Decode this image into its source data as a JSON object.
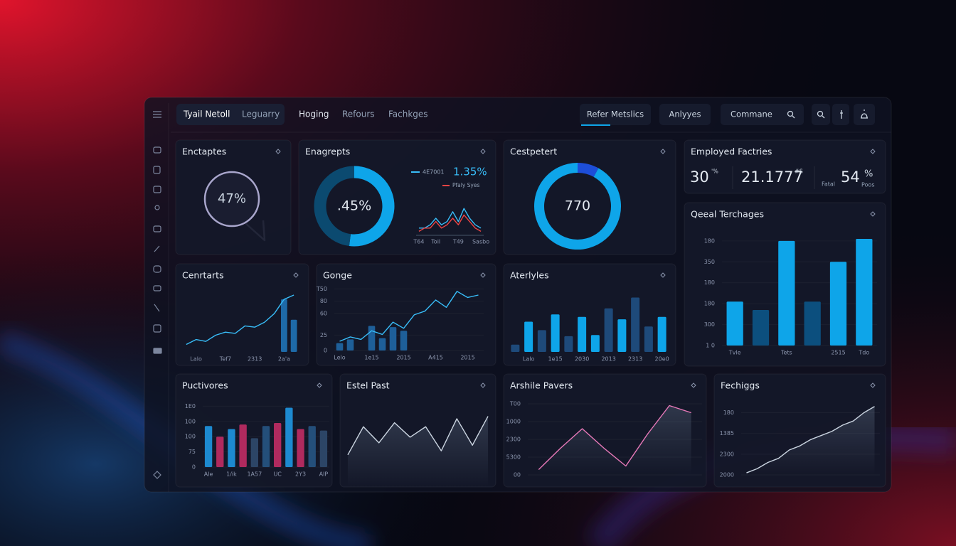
{
  "nav": {
    "brand": "Tyail Netoll",
    "sub": "Leguarry",
    "links": [
      "Hoging",
      "Refours",
      "Fachkges"
    ],
    "tabs": [
      "Refer Metslics",
      "Anlyyes"
    ],
    "search": "Commane"
  },
  "panels": [
    {
      "title": "Enctaptes",
      "type": "bubble",
      "center_label": "47%"
    },
    {
      "title": "Enagrepts",
      "type": "donut",
      "center_label": ".45%",
      "values": [
        52,
        48
      ],
      "colors": [
        "#0ea5e9",
        "#0b4a70"
      ],
      "highlight": "1.35%",
      "trend": {
        "categories": [
          "T64",
          null,
          null,
          "Toil",
          null,
          null,
          null,
          "T49",
          null,
          null,
          null,
          "Sasbo"
        ],
        "ylim": [
          0,
          10
        ],
        "series": [
          {
            "name": "4E7001",
            "type": "line",
            "color": "#38bdf8",
            "values": [
              2,
              2,
              3,
              5,
              3,
              4,
              7,
              4,
              8,
              5,
              3,
              2
            ]
          },
          {
            "name": "Pfaly Syes",
            "type": "line",
            "color": "#ef4444",
            "values": [
              1,
              2,
              2,
              4,
              2,
              3,
              5,
              3,
              6,
              4,
              2,
              1
            ]
          }
        ]
      }
    },
    {
      "title": "Cestpetert",
      "type": "donut",
      "center_label": "770",
      "values": [
        8,
        92
      ],
      "colors": [
        "#1d4ed8",
        "#0ea5e9"
      ]
    },
    {
      "title": "Employed Factries",
      "type": "stats",
      "items": [
        {
          "value": "30",
          "sup": "'%"
        },
        {
          "value": "21.1777",
          "sup": "#S"
        },
        {
          "label": "Fatal",
          "value": "54",
          "sup": "%",
          "sub": "Poos"
        }
      ]
    },
    {
      "title": "Qeeal Terchages",
      "type": "chart",
      "categories": [
        "Tvle",
        null,
        "Tets",
        null,
        "2515",
        "Tdo"
      ],
      "ylim": [
        0,
        5.2
      ],
      "yticks": [
        {
          "value": 0,
          "label": "1 0"
        },
        {
          "value": 1,
          "label": "300"
        },
        {
          "value": 2,
          "label": "180"
        },
        {
          "value": 3,
          "label": "180"
        },
        {
          "value": 4,
          "label": "350"
        },
        {
          "value": 5,
          "label": "180"
        }
      ],
      "series": [
        {
          "type": "bar",
          "colors": [
            "#0ea5e9",
            "#0c4f7e",
            "#0ea5e9",
            "#0c4f7e",
            "#0ea5e9",
            "#0ea5e9"
          ],
          "values": [
            2.1,
            1.7,
            5.0,
            2.1,
            4.0,
            5.1
          ]
        }
      ]
    },
    {
      "title": "Cenrtarts",
      "type": "chart",
      "categories": [
        null,
        "Lalo",
        null,
        null,
        "Tef7",
        null,
        null,
        "2313",
        null,
        null,
        "2a'a",
        null
      ],
      "ylim": [
        0,
        100
      ],
      "series": [
        {
          "type": "bar",
          "color": "#1e6aa8",
          "values": [
            null,
            null,
            null,
            null,
            null,
            null,
            null,
            null,
            null,
            null,
            85,
            52
          ]
        },
        {
          "type": "line",
          "color": "#38bdf8",
          "values": [
            12,
            20,
            17,
            27,
            32,
            30,
            42,
            40,
            48,
            62,
            85,
            92
          ]
        }
      ]
    },
    {
      "title": "Gonge",
      "type": "chart",
      "categories": [
        "Lelo",
        null,
        null,
        "1e15",
        null,
        null,
        "2015",
        null,
        null,
        "A415",
        null,
        null,
        "2015",
        null
      ],
      "ylim": [
        0,
        105
      ],
      "yticks": [
        0,
        25,
        60,
        80,
        {
          "value": 100,
          "label": "T50"
        }
      ],
      "series": [
        {
          "type": "bar",
          "color": "#1e5f99",
          "values": [
            12,
            18,
            null,
            40,
            20,
            38,
            32,
            null,
            null,
            null,
            null,
            null,
            null,
            null
          ]
        },
        {
          "type": "line",
          "color": "#38bdf8",
          "values": [
            15,
            22,
            18,
            32,
            26,
            46,
            36,
            58,
            64,
            82,
            70,
            96,
            86,
            90
          ]
        }
      ]
    },
    {
      "title": "Aterlyles",
      "type": "chart",
      "categories": [
        null,
        "Lalo",
        null,
        "1e15",
        null,
        "2030",
        null,
        "2013",
        null,
        "2313",
        null,
        "20e0"
      ],
      "ylim": [
        0,
        100
      ],
      "series": [
        {
          "type": "bar",
          "colors": [
            "#1e4a7a",
            "#0ea5e9",
            "#1e4a7a",
            "#0ea5e9",
            "#1e4a7a",
            "#0ea5e9",
            "#0ea5e9",
            "#1e4a7a",
            "#0ea5e9",
            "#1e4a7a",
            "#1e4a7a",
            "#0ea5e9"
          ],
          "values": [
            12,
            50,
            36,
            62,
            26,
            58,
            28,
            72,
            54,
            90,
            42,
            58
          ]
        }
      ]
    },
    {
      "title": "Puctivores",
      "type": "chart",
      "categories": [
        "Ale",
        null,
        "1/ik",
        null,
        "1A57",
        null,
        "UC",
        null,
        "2Y3",
        null,
        "AIP"
      ],
      "ylim": [
        0,
        4.3
      ],
      "yticks": [
        0,
        {
          "value": 1,
          "label": "75"
        },
        {
          "value": 2,
          "label": "100"
        },
        {
          "value": 3,
          "label": "100"
        },
        {
          "value": 4,
          "label": "1E0"
        }
      ],
      "series": [
        {
          "type": "bar",
          "colors": [
            "#1d8ad0",
            "#b02a5e",
            "#1d8ad0",
            "#b02a5e",
            "#2c4566",
            "#244f7a",
            "#b02a5e",
            "#1d8ad0",
            "#b02a5e",
            "#244f7a",
            "#2c4566"
          ],
          "values": [
            2.7,
            2.0,
            2.5,
            2.8,
            1.9,
            2.7,
            2.9,
            3.9,
            2.5,
            2.7,
            2.4
          ]
        }
      ]
    },
    {
      "title": "Estel Past",
      "type": "chart",
      "categories": [
        null,
        null,
        null,
        null,
        null,
        null,
        null,
        null,
        null,
        null
      ],
      "ylim": [
        0,
        100
      ],
      "series": [
        {
          "type": "line",
          "area": true,
          "color": "#cbd5e1",
          "values": [
            40,
            75,
            55,
            80,
            62,
            75,
            45,
            85,
            52,
            88
          ]
        }
      ]
    },
    {
      "title": "Arshile Pavers",
      "type": "chart",
      "categories": [
        null,
        null,
        null,
        null,
        null,
        null,
        null,
        null
      ],
      "ylim": [
        0,
        4.2
      ],
      "yticks": [
        {
          "value": 0,
          "label": "00"
        },
        {
          "value": 1,
          "label": "5300"
        },
        {
          "value": 2,
          "label": "2300"
        },
        {
          "value": 3,
          "label": "1000"
        },
        {
          "value": 4,
          "label": "T00"
        }
      ],
      "series": [
        {
          "type": "line",
          "area": true,
          "color": "#e879b9",
          "values": [
            0.3,
            1.5,
            2.6,
            1.5,
            0.5,
            2.3,
            3.9,
            3.5
          ]
        }
      ]
    },
    {
      "title": "Fechiggs",
      "type": "chart",
      "categories": [
        null,
        null,
        null,
        null,
        null,
        null,
        null,
        null,
        null,
        null,
        null,
        null,
        null
      ],
      "ylim": [
        0,
        3.6
      ],
      "yticks": [
        {
          "value": 0,
          "label": "2000"
        },
        {
          "value": 1,
          "label": "2300"
        },
        {
          "value": 2,
          "label": "1385"
        },
        {
          "value": 3,
          "label": "180"
        }
      ],
      "series": [
        {
          "type": "line",
          "area": true,
          "color": "#cbd5e1",
          "values": [
            0.1,
            0.3,
            0.6,
            0.8,
            1.2,
            1.4,
            1.7,
            1.9,
            2.1,
            2.4,
            2.6,
            3.0,
            3.3
          ]
        }
      ]
    }
  ]
}
